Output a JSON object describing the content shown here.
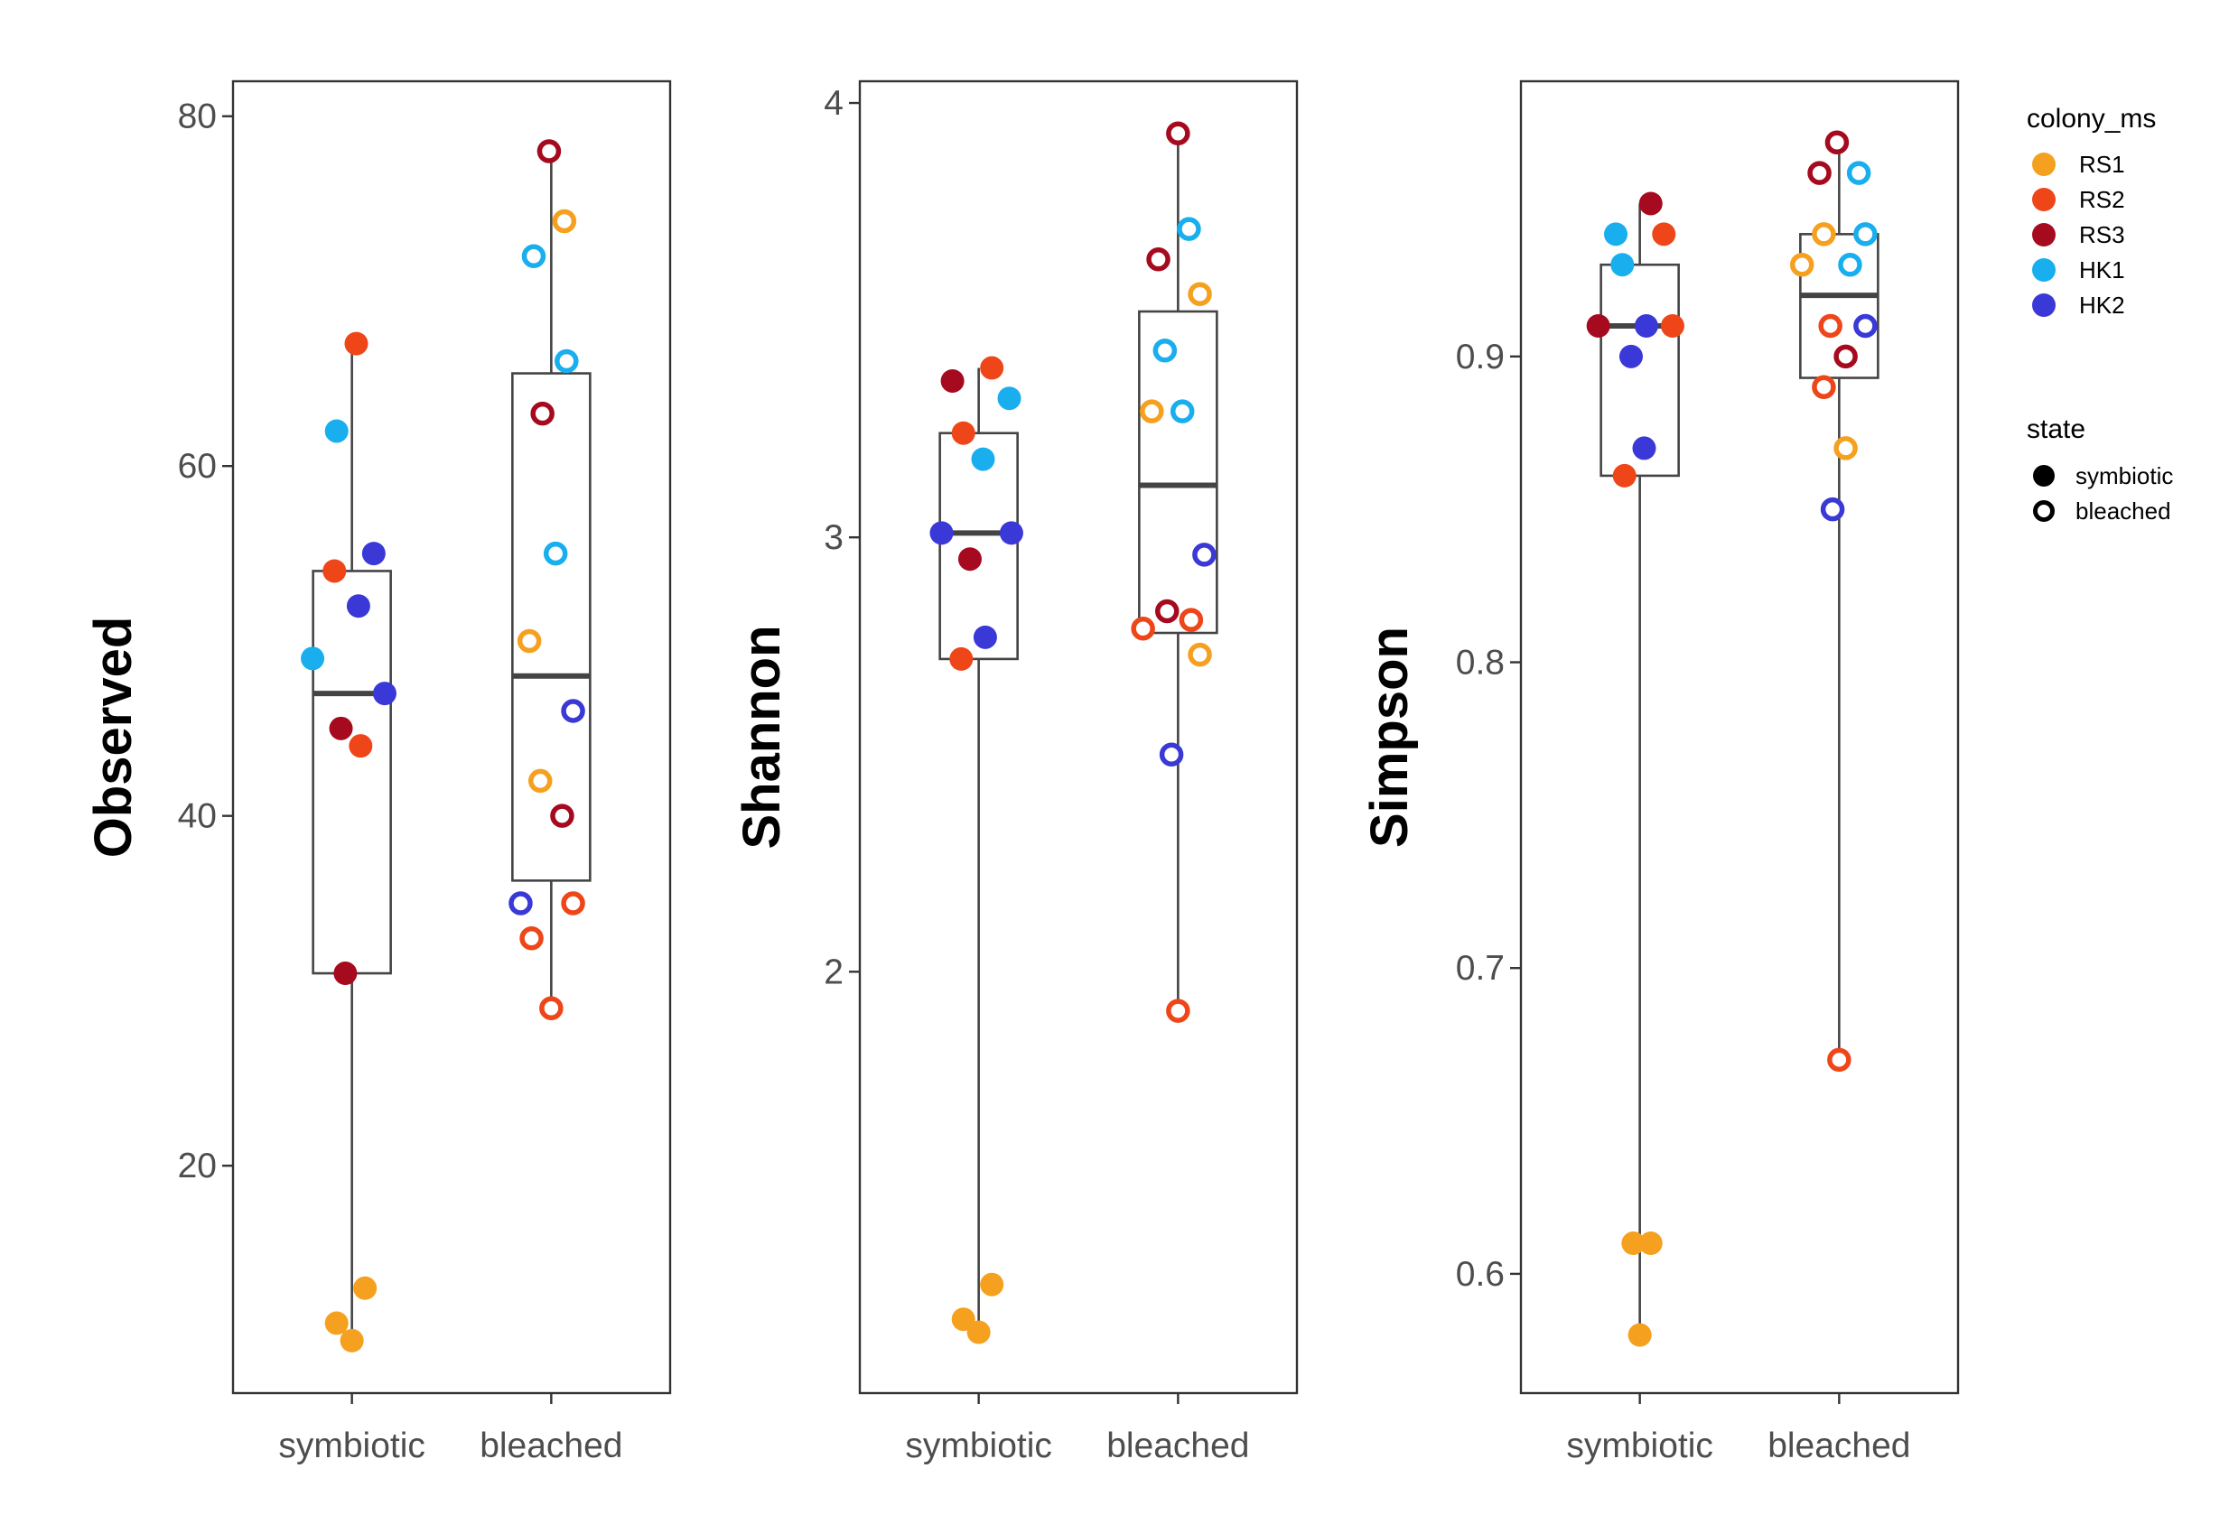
{
  "chart_data": [
    {
      "type": "box",
      "ylabel": "Observed",
      "categories": [
        "symbiotic",
        "bleached"
      ],
      "ylim": [
        7,
        82
      ],
      "yticks": [
        20,
        40,
        60,
        80
      ],
      "tick_labels": [
        "20",
        "40",
        "60",
        "80"
      ],
      "boxes": [
        {
          "category": "symbiotic",
          "q1": 31,
          "median": 47,
          "q3": 54,
          "whisker_low": 10,
          "whisker_high": 67
        },
        {
          "category": "bleached",
          "q1": 36.3,
          "median": 48,
          "q3": 65.3,
          "whisker_low": 29,
          "whisker_high": 78
        }
      ],
      "points": [
        {
          "category": "symbiotic",
          "state": "symbiotic",
          "colony": "RS1",
          "y": 13,
          "jitter": 0.06
        },
        {
          "category": "symbiotic",
          "state": "symbiotic",
          "colony": "RS1",
          "y": 11,
          "jitter": -0.07
        },
        {
          "category": "symbiotic",
          "state": "symbiotic",
          "colony": "RS1",
          "y": 10,
          "jitter": 0.0
        },
        {
          "category": "symbiotic",
          "state": "symbiotic",
          "colony": "RS2",
          "y": 67,
          "jitter": 0.02
        },
        {
          "category": "symbiotic",
          "state": "symbiotic",
          "colony": "RS2",
          "y": 54,
          "jitter": -0.08
        },
        {
          "category": "symbiotic",
          "state": "symbiotic",
          "colony": "RS2",
          "y": 44,
          "jitter": 0.04
        },
        {
          "category": "symbiotic",
          "state": "symbiotic",
          "colony": "RS3",
          "y": 45,
          "jitter": -0.05
        },
        {
          "category": "symbiotic",
          "state": "symbiotic",
          "colony": "RS3",
          "y": 31,
          "jitter": -0.03
        },
        {
          "category": "symbiotic",
          "state": "symbiotic",
          "colony": "HK1",
          "y": 62,
          "jitter": -0.07
        },
        {
          "category": "symbiotic",
          "state": "symbiotic",
          "colony": "HK1",
          "y": 49,
          "jitter": -0.18
        },
        {
          "category": "symbiotic",
          "state": "symbiotic",
          "colony": "HK2",
          "y": 55,
          "jitter": 0.1
        },
        {
          "category": "symbiotic",
          "state": "symbiotic",
          "colony": "HK2",
          "y": 52,
          "jitter": 0.03
        },
        {
          "category": "symbiotic",
          "state": "symbiotic",
          "colony": "HK2",
          "y": 47,
          "jitter": 0.15
        },
        {
          "category": "bleached",
          "state": "bleached",
          "colony": "RS1",
          "y": 74,
          "jitter": 0.06
        },
        {
          "category": "bleached",
          "state": "bleached",
          "colony": "RS1",
          "y": 50,
          "jitter": -0.1
        },
        {
          "category": "bleached",
          "state": "bleached",
          "colony": "RS1",
          "y": 42,
          "jitter": -0.05
        },
        {
          "category": "bleached",
          "state": "bleached",
          "colony": "RS2",
          "y": 35,
          "jitter": 0.1
        },
        {
          "category": "bleached",
          "state": "bleached",
          "colony": "RS2",
          "y": 33,
          "jitter": -0.09
        },
        {
          "category": "bleached",
          "state": "bleached",
          "colony": "RS2",
          "y": 29,
          "jitter": 0.0
        },
        {
          "category": "bleached",
          "state": "bleached",
          "colony": "RS3",
          "y": 78,
          "jitter": -0.01
        },
        {
          "category": "bleached",
          "state": "bleached",
          "colony": "RS3",
          "y": 63,
          "jitter": -0.04
        },
        {
          "category": "bleached",
          "state": "bleached",
          "colony": "RS3",
          "y": 40,
          "jitter": 0.05
        },
        {
          "category": "bleached",
          "state": "bleached",
          "colony": "HK1",
          "y": 72,
          "jitter": -0.08
        },
        {
          "category": "bleached",
          "state": "bleached",
          "colony": "HK1",
          "y": 66,
          "jitter": 0.07
        },
        {
          "category": "bleached",
          "state": "bleached",
          "colony": "HK1",
          "y": 55,
          "jitter": 0.02
        },
        {
          "category": "bleached",
          "state": "bleached",
          "colony": "HK2",
          "y": 46,
          "jitter": 0.1
        },
        {
          "category": "bleached",
          "state": "bleached",
          "colony": "HK2",
          "y": 35,
          "jitter": -0.14
        }
      ]
    },
    {
      "type": "box",
      "ylabel": "Shannon",
      "categories": [
        "symbiotic",
        "bleached"
      ],
      "ylim": [
        1.03,
        4.05
      ],
      "yticks": [
        2,
        3,
        4
      ],
      "tick_labels": [
        "2",
        "3",
        "4"
      ],
      "boxes": [
        {
          "category": "symbiotic",
          "q1": 2.72,
          "median": 3.01,
          "q3": 3.24,
          "whisker_low": 1.17,
          "whisker_high": 3.39
        },
        {
          "category": "bleached",
          "q1": 2.78,
          "median": 3.12,
          "q3": 3.52,
          "whisker_low": 1.91,
          "whisker_high": 3.93
        }
      ],
      "points": [
        {
          "category": "symbiotic",
          "state": "symbiotic",
          "colony": "RS1",
          "y": 1.28,
          "jitter": 0.06
        },
        {
          "category": "symbiotic",
          "state": "symbiotic",
          "colony": "RS1",
          "y": 1.2,
          "jitter": -0.07
        },
        {
          "category": "symbiotic",
          "state": "symbiotic",
          "colony": "RS1",
          "y": 1.17,
          "jitter": 0.0
        },
        {
          "category": "symbiotic",
          "state": "symbiotic",
          "colony": "RS2",
          "y": 3.39,
          "jitter": 0.06
        },
        {
          "category": "symbiotic",
          "state": "symbiotic",
          "colony": "RS2",
          "y": 3.24,
          "jitter": -0.07
        },
        {
          "category": "symbiotic",
          "state": "symbiotic",
          "colony": "RS2",
          "y": 2.72,
          "jitter": -0.08
        },
        {
          "category": "symbiotic",
          "state": "symbiotic",
          "colony": "RS3",
          "y": 3.36,
          "jitter": -0.12
        },
        {
          "category": "symbiotic",
          "state": "symbiotic",
          "colony": "RS3",
          "y": 2.95,
          "jitter": -0.04
        },
        {
          "category": "symbiotic",
          "state": "symbiotic",
          "colony": "HK1",
          "y": 3.32,
          "jitter": 0.14
        },
        {
          "category": "symbiotic",
          "state": "symbiotic",
          "colony": "HK1",
          "y": 3.18,
          "jitter": 0.02
        },
        {
          "category": "symbiotic",
          "state": "symbiotic",
          "colony": "HK2",
          "y": 3.01,
          "jitter": -0.17
        },
        {
          "category": "symbiotic",
          "state": "symbiotic",
          "colony": "HK2",
          "y": 3.01,
          "jitter": 0.15
        },
        {
          "category": "symbiotic",
          "state": "symbiotic",
          "colony": "HK2",
          "y": 2.77,
          "jitter": 0.03
        },
        {
          "category": "bleached",
          "state": "bleached",
          "colony": "RS1",
          "y": 3.56,
          "jitter": 0.1
        },
        {
          "category": "bleached",
          "state": "bleached",
          "colony": "RS1",
          "y": 3.29,
          "jitter": -0.12
        },
        {
          "category": "bleached",
          "state": "bleached",
          "colony": "RS1",
          "y": 2.73,
          "jitter": 0.1
        },
        {
          "category": "bleached",
          "state": "bleached",
          "colony": "RS2",
          "y": 2.79,
          "jitter": -0.16
        },
        {
          "category": "bleached",
          "state": "bleached",
          "colony": "RS2",
          "y": 2.81,
          "jitter": 0.06
        },
        {
          "category": "bleached",
          "state": "bleached",
          "colony": "RS2",
          "y": 1.91,
          "jitter": 0.0
        },
        {
          "category": "bleached",
          "state": "bleached",
          "colony": "RS3",
          "y": 3.93,
          "jitter": 0.0
        },
        {
          "category": "bleached",
          "state": "bleached",
          "colony": "RS3",
          "y": 3.64,
          "jitter": -0.09
        },
        {
          "category": "bleached",
          "state": "bleached",
          "colony": "RS3",
          "y": 2.83,
          "jitter": -0.05
        },
        {
          "category": "bleached",
          "state": "bleached",
          "colony": "HK1",
          "y": 3.71,
          "jitter": 0.05
        },
        {
          "category": "bleached",
          "state": "bleached",
          "colony": "HK1",
          "y": 3.43,
          "jitter": -0.06
        },
        {
          "category": "bleached",
          "state": "bleached",
          "colony": "HK1",
          "y": 3.29,
          "jitter": 0.02
        },
        {
          "category": "bleached",
          "state": "bleached",
          "colony": "HK2",
          "y": 2.96,
          "jitter": 0.12
        },
        {
          "category": "bleached",
          "state": "bleached",
          "colony": "HK2",
          "y": 2.5,
          "jitter": -0.03
        }
      ]
    },
    {
      "type": "box",
      "ylabel": "Simpson",
      "categories": [
        "symbiotic",
        "bleached"
      ],
      "ylim": [
        0.561,
        0.99
      ],
      "yticks": [
        0.6,
        0.7,
        0.8,
        0.9
      ],
      "tick_labels": [
        "0.6",
        "0.7",
        "0.8",
        "0.9"
      ],
      "boxes": [
        {
          "category": "symbiotic",
          "q1": 0.861,
          "median": 0.91,
          "q3": 0.93,
          "whisker_low": 0.58,
          "whisker_high": 0.95
        },
        {
          "category": "bleached",
          "q1": 0.893,
          "median": 0.92,
          "q3": 0.94,
          "whisker_low": 0.67,
          "whisker_high": 0.97
        }
      ],
      "points": [
        {
          "category": "symbiotic",
          "state": "symbiotic",
          "colony": "RS1",
          "y": 0.61,
          "jitter": -0.03
        },
        {
          "category": "symbiotic",
          "state": "symbiotic",
          "colony": "RS1",
          "y": 0.61,
          "jitter": 0.05
        },
        {
          "category": "symbiotic",
          "state": "symbiotic",
          "colony": "RS1",
          "y": 0.58,
          "jitter": 0.0
        },
        {
          "category": "symbiotic",
          "state": "symbiotic",
          "colony": "RS2",
          "y": 0.94,
          "jitter": 0.11
        },
        {
          "category": "symbiotic",
          "state": "symbiotic",
          "colony": "RS2",
          "y": 0.91,
          "jitter": 0.15
        },
        {
          "category": "symbiotic",
          "state": "symbiotic",
          "colony": "RS2",
          "y": 0.861,
          "jitter": -0.07
        },
        {
          "category": "symbiotic",
          "state": "symbiotic",
          "colony": "RS3",
          "y": 0.95,
          "jitter": 0.05
        },
        {
          "category": "symbiotic",
          "state": "symbiotic",
          "colony": "RS3",
          "y": 0.91,
          "jitter": -0.19
        },
        {
          "category": "symbiotic",
          "state": "symbiotic",
          "colony": "HK1",
          "y": 0.94,
          "jitter": -0.11
        },
        {
          "category": "symbiotic",
          "state": "symbiotic",
          "colony": "HK1",
          "y": 0.93,
          "jitter": -0.08
        },
        {
          "category": "symbiotic",
          "state": "symbiotic",
          "colony": "HK2",
          "y": 0.91,
          "jitter": 0.03
        },
        {
          "category": "symbiotic",
          "state": "symbiotic",
          "colony": "HK2",
          "y": 0.9,
          "jitter": -0.04
        },
        {
          "category": "symbiotic",
          "state": "symbiotic",
          "colony": "HK2",
          "y": 0.87,
          "jitter": 0.02
        },
        {
          "category": "bleached",
          "state": "bleached",
          "colony": "RS1",
          "y": 0.94,
          "jitter": -0.07
        },
        {
          "category": "bleached",
          "state": "bleached",
          "colony": "RS1",
          "y": 0.93,
          "jitter": -0.17
        },
        {
          "category": "bleached",
          "state": "bleached",
          "colony": "RS1",
          "y": 0.87,
          "jitter": 0.03
        },
        {
          "category": "bleached",
          "state": "bleached",
          "colony": "RS2",
          "y": 0.91,
          "jitter": -0.04
        },
        {
          "category": "bleached",
          "state": "bleached",
          "colony": "RS2",
          "y": 0.89,
          "jitter": -0.07
        },
        {
          "category": "bleached",
          "state": "bleached",
          "colony": "RS2",
          "y": 0.67,
          "jitter": 0.0
        },
        {
          "category": "bleached",
          "state": "bleached",
          "colony": "RS3",
          "y": 0.97,
          "jitter": -0.01
        },
        {
          "category": "bleached",
          "state": "bleached",
          "colony": "RS3",
          "y": 0.96,
          "jitter": -0.09
        },
        {
          "category": "bleached",
          "state": "bleached",
          "colony": "RS3",
          "y": 0.9,
          "jitter": 0.03
        },
        {
          "category": "bleached",
          "state": "bleached",
          "colony": "HK1",
          "y": 0.96,
          "jitter": 0.09
        },
        {
          "category": "bleached",
          "state": "bleached",
          "colony": "HK1",
          "y": 0.94,
          "jitter": 0.12
        },
        {
          "category": "bleached",
          "state": "bleached",
          "colony": "HK1",
          "y": 0.93,
          "jitter": 0.05
        },
        {
          "category": "bleached",
          "state": "bleached",
          "colony": "HK2",
          "y": 0.91,
          "jitter": 0.12
        },
        {
          "category": "bleached",
          "state": "bleached",
          "colony": "HK2",
          "y": 0.85,
          "jitter": -0.03
        }
      ]
    }
  ],
  "legend": {
    "colony_title": "colony_ms",
    "colonies": [
      {
        "name": "RS1",
        "color": "#F5A01E"
      },
      {
        "name": "RS2",
        "color": "#EE4519"
      },
      {
        "name": "RS3",
        "color": "#A50A1E"
      },
      {
        "name": "HK1",
        "color": "#19AEEE"
      },
      {
        "name": "HK2",
        "color": "#3A38D6"
      }
    ],
    "state_title": "state",
    "states": [
      {
        "name": "symbiotic",
        "shape": "filled-circle"
      },
      {
        "name": "bleached",
        "shape": "open-circle"
      }
    ]
  }
}
